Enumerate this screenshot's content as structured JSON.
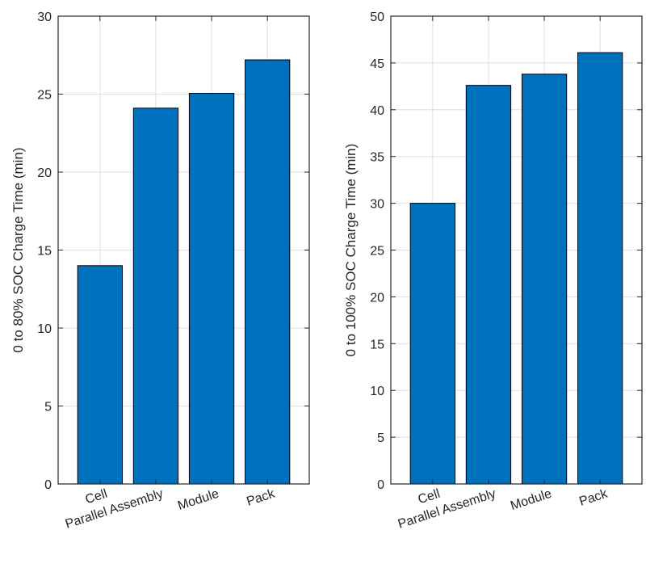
{
  "chart_data": [
    {
      "type": "bar",
      "categories": [
        "Cell",
        "Parallel Assembly",
        "Module",
        "Pack"
      ],
      "values": [
        14,
        24.1,
        25.05,
        27.2
      ],
      "title": "",
      "xlabel": "",
      "ylabel": "0 to 80% SOC Charge Time (min)",
      "ylim": [
        0,
        30
      ],
      "yticks": [
        0,
        5,
        10,
        15,
        20,
        25,
        30
      ],
      "grid": true,
      "bar_color": "#0072BD"
    },
    {
      "type": "bar",
      "categories": [
        "Cell",
        "Parallel Assembly",
        "Module",
        "Pack"
      ],
      "values": [
        30,
        42.6,
        43.8,
        46.1
      ],
      "title": "",
      "xlabel": "",
      "ylabel": "0 to 100% SOC Charge Time (min)",
      "ylim": [
        0,
        50
      ],
      "yticks": [
        0,
        5,
        10,
        15,
        20,
        25,
        30,
        35,
        40,
        45,
        50
      ],
      "grid": true,
      "bar_color": "#0072BD"
    }
  ]
}
